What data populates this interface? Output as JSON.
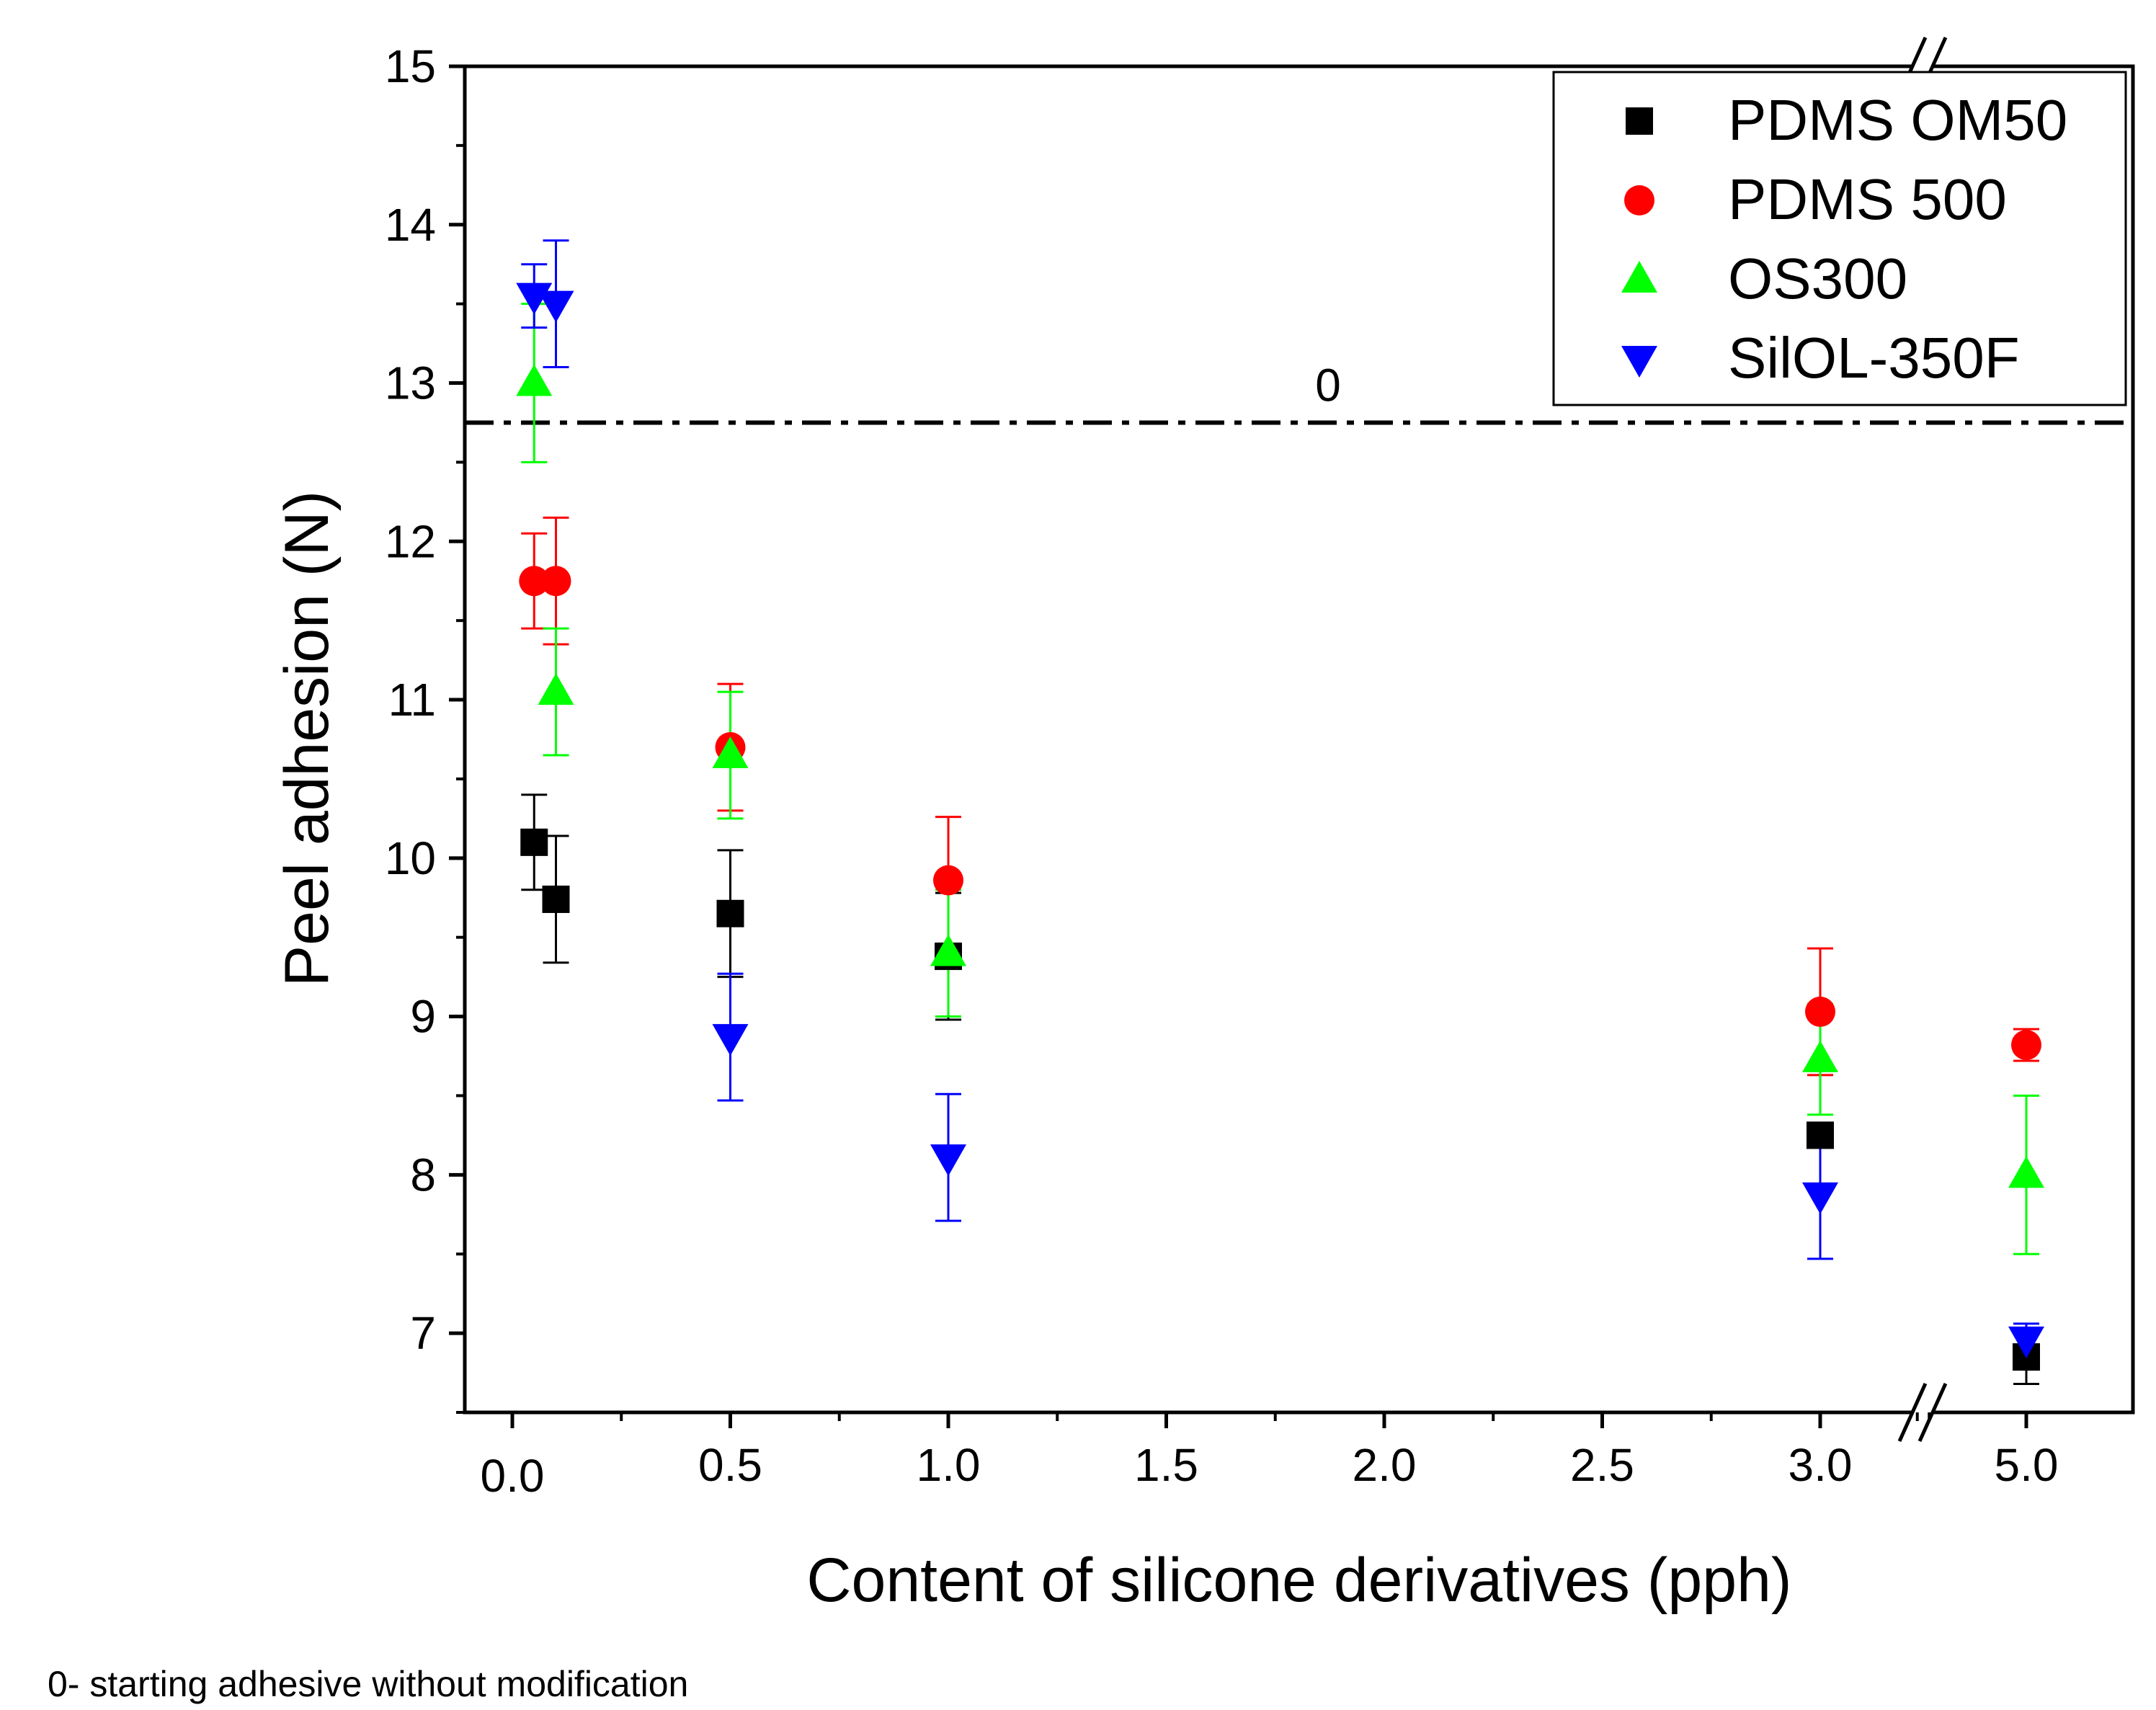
{
  "chart_data": {
    "type": "scatter",
    "xlabel": "Content of silicone derivatives (pph)",
    "ylabel": "Peel adhesion (N)",
    "ylim": [
      6.5,
      15
    ],
    "x_ticks": [
      "0.0",
      "0.5",
      "1.0",
      "1.5",
      "2.0",
      "2.5",
      "3.0",
      "5.0"
    ],
    "y_ticks": [
      "7",
      "8",
      "9",
      "10",
      "11",
      "12",
      "13",
      "14",
      "15"
    ],
    "axis_break": "between 3.0 and 5.0",
    "legend_position": "top-right",
    "reference_line": {
      "label": "0",
      "y": 12.75,
      "style": "dash-dot"
    },
    "series": [
      {
        "name": "PDMS OM50",
        "marker": "square",
        "color": "#000000",
        "points": [
          {
            "x": 0.05,
            "y": 10.1,
            "err": 0.3
          },
          {
            "x": 0.1,
            "y": 9.74,
            "err": 0.4
          },
          {
            "x": 0.5,
            "y": 9.65,
            "err": 0.4
          },
          {
            "x": 1.0,
            "y": 9.38,
            "err": 0.4
          },
          {
            "x": 3.0,
            "y": 8.25,
            "err": 0.06
          },
          {
            "x": 5.0,
            "y": 6.85,
            "err": 0.17
          }
        ]
      },
      {
        "name": "PDMS 500",
        "marker": "circle",
        "color": "#ff0000",
        "points": [
          {
            "x": 0.05,
            "y": 11.75,
            "err": 0.3
          },
          {
            "x": 0.1,
            "y": 11.75,
            "err": 0.4
          },
          {
            "x": 0.5,
            "y": 10.7,
            "err": 0.4
          },
          {
            "x": 1.0,
            "y": 9.86,
            "err": 0.4
          },
          {
            "x": 3.0,
            "y": 9.03,
            "err": 0.4
          },
          {
            "x": 5.0,
            "y": 8.82,
            "err": 0.1
          }
        ]
      },
      {
        "name": "OS300",
        "marker": "triangle-up",
        "color": "#00ff00",
        "points": [
          {
            "x": 0.05,
            "y": 13.0,
            "err": 0.5
          },
          {
            "x": 0.1,
            "y": 11.05,
            "err": 0.4
          },
          {
            "x": 0.5,
            "y": 10.65,
            "err": 0.4
          },
          {
            "x": 1.0,
            "y": 9.4,
            "err": 0.4
          },
          {
            "x": 3.0,
            "y": 8.73,
            "err": 0.35
          },
          {
            "x": 5.0,
            "y": 8.0,
            "err": 0.5
          }
        ]
      },
      {
        "name": "SilOL-350F",
        "marker": "triangle-down",
        "color": "#0000ff",
        "points": [
          {
            "x": 0.05,
            "y": 13.55,
            "err": 0.2
          },
          {
            "x": 0.1,
            "y": 13.5,
            "err": 0.4
          },
          {
            "x": 0.5,
            "y": 8.87,
            "err": 0.4
          },
          {
            "x": 1.0,
            "y": 8.11,
            "err": 0.4
          },
          {
            "x": 3.0,
            "y": 7.87,
            "err": 0.4
          },
          {
            "x": 5.0,
            "y": 6.96,
            "err": 0.1
          }
        ]
      }
    ]
  },
  "footnote": "0- starting adhesive without modification"
}
